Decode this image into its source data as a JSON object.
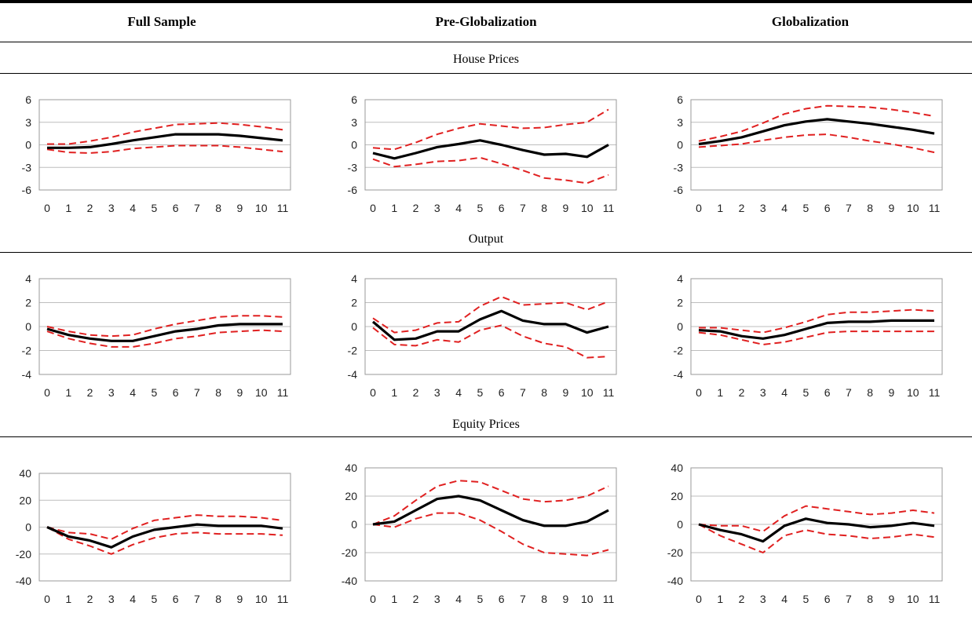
{
  "column_headers": [
    "Full Sample",
    "Pre-Globalization",
    "Globalization"
  ],
  "sections": [
    "House Prices",
    "Output",
    "Equity Prices"
  ],
  "colors": {
    "central": "#000000",
    "band": "#e02020",
    "grid": "#bdbdbd",
    "frame": "#9a9a9a"
  },
  "chart_data": [
    {
      "type": "line",
      "section": "House Prices",
      "column": "Full Sample",
      "x": [
        0,
        1,
        2,
        3,
        4,
        5,
        6,
        7,
        8,
        9,
        10,
        11
      ],
      "ylim": [
        -6,
        6
      ],
      "yticks": [
        6,
        3,
        0,
        -3,
        -6
      ],
      "series": [
        {
          "role": "central",
          "values": [
            -0.4,
            -0.4,
            -0.3,
            0.1,
            0.6,
            1.0,
            1.4,
            1.4,
            1.4,
            1.2,
            0.9,
            0.6
          ]
        },
        {
          "role": "upper",
          "values": [
            0.1,
            0.1,
            0.5,
            1.0,
            1.7,
            2.2,
            2.7,
            2.8,
            2.9,
            2.7,
            2.4,
            2.0
          ]
        },
        {
          "role": "lower",
          "values": [
            -0.6,
            -1.0,
            -1.1,
            -0.9,
            -0.5,
            -0.3,
            -0.1,
            -0.1,
            -0.1,
            -0.3,
            -0.6,
            -0.9
          ]
        }
      ]
    },
    {
      "type": "line",
      "section": "House Prices",
      "column": "Pre-Globalization",
      "x": [
        0,
        1,
        2,
        3,
        4,
        5,
        6,
        7,
        8,
        9,
        10,
        11
      ],
      "ylim": [
        -6,
        6
      ],
      "yticks": [
        6,
        3,
        0,
        -3,
        -6
      ],
      "series": [
        {
          "role": "central",
          "values": [
            -1.1,
            -1.8,
            -1.1,
            -0.3,
            0.1,
            0.6,
            0.0,
            -0.7,
            -1.3,
            -1.2,
            -1.6,
            0.0
          ]
        },
        {
          "role": "upper",
          "values": [
            -0.4,
            -0.6,
            0.3,
            1.4,
            2.2,
            2.8,
            2.5,
            2.2,
            2.3,
            2.7,
            3.0,
            4.7
          ]
        },
        {
          "role": "lower",
          "values": [
            -1.9,
            -2.9,
            -2.6,
            -2.2,
            -2.1,
            -1.7,
            -2.5,
            -3.4,
            -4.4,
            -4.7,
            -5.1,
            -4.0
          ]
        }
      ]
    },
    {
      "type": "line",
      "section": "House Prices",
      "column": "Globalization",
      "x": [
        0,
        1,
        2,
        3,
        4,
        5,
        6,
        7,
        8,
        9,
        10,
        11
      ],
      "ylim": [
        -6,
        6
      ],
      "yticks": [
        6,
        3,
        0,
        -3,
        -6
      ],
      "series": [
        {
          "role": "central",
          "values": [
            0.1,
            0.5,
            1.0,
            1.8,
            2.6,
            3.1,
            3.4,
            3.1,
            2.8,
            2.4,
            2.0,
            1.5
          ]
        },
        {
          "role": "upper",
          "values": [
            0.5,
            1.1,
            1.8,
            2.9,
            4.1,
            4.8,
            5.2,
            5.1,
            5.0,
            4.7,
            4.3,
            3.8
          ]
        },
        {
          "role": "lower",
          "values": [
            -0.3,
            -0.1,
            0.1,
            0.6,
            1.0,
            1.3,
            1.4,
            1.0,
            0.5,
            0.1,
            -0.4,
            -1.0
          ]
        }
      ]
    },
    {
      "type": "line",
      "section": "Output",
      "column": "Full Sample",
      "x": [
        0,
        1,
        2,
        3,
        4,
        5,
        6,
        7,
        8,
        9,
        10,
        11
      ],
      "ylim": [
        -4,
        4
      ],
      "yticks": [
        4,
        2,
        0,
        -2,
        -4
      ],
      "series": [
        {
          "role": "central",
          "values": [
            -0.2,
            -0.7,
            -1.0,
            -1.2,
            -1.2,
            -0.8,
            -0.4,
            -0.2,
            0.1,
            0.2,
            0.2,
            0.2
          ]
        },
        {
          "role": "upper",
          "values": [
            0.0,
            -0.4,
            -0.7,
            -0.8,
            -0.7,
            -0.2,
            0.2,
            0.5,
            0.8,
            0.9,
            0.9,
            0.8
          ]
        },
        {
          "role": "lower",
          "values": [
            -0.4,
            -1.0,
            -1.4,
            -1.7,
            -1.7,
            -1.4,
            -1.0,
            -0.8,
            -0.5,
            -0.4,
            -0.3,
            -0.4
          ]
        }
      ]
    },
    {
      "type": "line",
      "section": "Output",
      "column": "Pre-Globalization",
      "x": [
        0,
        1,
        2,
        3,
        4,
        5,
        6,
        7,
        8,
        9,
        10,
        11
      ],
      "ylim": [
        -4,
        4
      ],
      "yticks": [
        4,
        2,
        0,
        -2,
        -4
      ],
      "series": [
        {
          "role": "central",
          "values": [
            0.4,
            -1.1,
            -1.0,
            -0.4,
            -0.4,
            0.6,
            1.3,
            0.5,
            0.2,
            0.2,
            -0.5,
            0.0
          ]
        },
        {
          "role": "upper",
          "values": [
            0.7,
            -0.5,
            -0.3,
            0.3,
            0.4,
            1.7,
            2.5,
            1.8,
            1.9,
            2.0,
            1.4,
            2.1
          ]
        },
        {
          "role": "lower",
          "values": [
            -0.1,
            -1.5,
            -1.6,
            -1.1,
            -1.3,
            -0.3,
            0.1,
            -0.8,
            -1.4,
            -1.7,
            -2.6,
            -2.5
          ]
        }
      ]
    },
    {
      "type": "line",
      "section": "Output",
      "column": "Globalization",
      "x": [
        0,
        1,
        2,
        3,
        4,
        5,
        6,
        7,
        8,
        9,
        10,
        11
      ],
      "ylim": [
        -4,
        4
      ],
      "yticks": [
        4,
        2,
        0,
        -2,
        -4
      ],
      "series": [
        {
          "role": "central",
          "values": [
            -0.3,
            -0.4,
            -0.8,
            -1.0,
            -0.7,
            -0.2,
            0.3,
            0.4,
            0.4,
            0.5,
            0.5,
            0.5
          ]
        },
        {
          "role": "upper",
          "values": [
            -0.1,
            -0.1,
            -0.3,
            -0.5,
            -0.1,
            0.4,
            1.0,
            1.2,
            1.2,
            1.3,
            1.4,
            1.3
          ]
        },
        {
          "role": "lower",
          "values": [
            -0.5,
            -0.7,
            -1.1,
            -1.5,
            -1.3,
            -0.9,
            -0.5,
            -0.4,
            -0.4,
            -0.4,
            -0.4,
            -0.4
          ]
        }
      ]
    },
    {
      "type": "line",
      "section": "Equity Prices",
      "column": "Full Sample",
      "x": [
        0,
        1,
        2,
        3,
        4,
        5,
        6,
        7,
        8,
        9,
        10,
        11
      ],
      "ylim": [
        -40,
        40
      ],
      "yticks": [
        40,
        20,
        0,
        -20,
        -40
      ],
      "series": [
        {
          "role": "central",
          "values": [
            0,
            -7,
            -10,
            -15,
            -7,
            -2,
            0,
            2,
            1,
            1,
            1,
            -1
          ]
        },
        {
          "role": "upper",
          "values": [
            0,
            -4,
            -5,
            -9,
            -1,
            5,
            7,
            9,
            8,
            8,
            7,
            5
          ]
        },
        {
          "role": "lower",
          "values": [
            0,
            -9,
            -14,
            -20,
            -13,
            -8,
            -5,
            -4,
            -5,
            -5,
            -5,
            -6
          ]
        }
      ]
    },
    {
      "type": "line",
      "section": "Equity Prices",
      "column": "Pre-Globalization",
      "x": [
        0,
        1,
        2,
        3,
        4,
        5,
        6,
        7,
        8,
        9,
        10,
        11
      ],
      "ylim": [
        -40,
        40
      ],
      "yticks": [
        40,
        20,
        0,
        -20,
        -40
      ],
      "series": [
        {
          "role": "central",
          "values": [
            0,
            2,
            10,
            18,
            20,
            17,
            10,
            3,
            -1,
            -1,
            2,
            10
          ]
        },
        {
          "role": "upper",
          "values": [
            0,
            6,
            17,
            27,
            31,
            30,
            24,
            18,
            16,
            17,
            20,
            27
          ]
        },
        {
          "role": "lower",
          "values": [
            0,
            -2,
            4,
            8,
            8,
            3,
            -5,
            -14,
            -20,
            -21,
            -22,
            -18
          ]
        }
      ]
    },
    {
      "type": "line",
      "section": "Equity Prices",
      "column": "Globalization",
      "x": [
        0,
        1,
        2,
        3,
        4,
        5,
        6,
        7,
        8,
        9,
        10,
        11
      ],
      "ylim": [
        -40,
        40
      ],
      "yticks": [
        40,
        20,
        0,
        -20,
        -40
      ],
      "series": [
        {
          "role": "central",
          "values": [
            0,
            -4,
            -7,
            -12,
            -1,
            4,
            1,
            0,
            -2,
            -1,
            1,
            -1
          ]
        },
        {
          "role": "upper",
          "values": [
            0,
            -1,
            -1,
            -5,
            6,
            13,
            11,
            9,
            7,
            8,
            10,
            8
          ]
        },
        {
          "role": "lower",
          "values": [
            0,
            -8,
            -14,
            -20,
            -8,
            -4,
            -7,
            -8,
            -10,
            -9,
            -7,
            -9
          ]
        }
      ]
    }
  ]
}
